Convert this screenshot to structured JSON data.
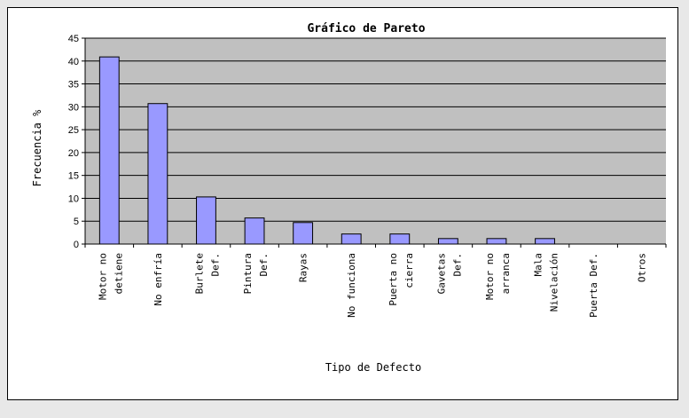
{
  "chart_data": {
    "type": "bar",
    "title": "Gráfico de Pareto",
    "xlabel": "Tipo de Defecto",
    "ylabel": "Frecuencia %",
    "ylim": [
      0,
      45
    ],
    "ytick_step": 5,
    "grid": true,
    "categories": [
      [
        "Motor no",
        "detiene"
      ],
      [
        "No enfría"
      ],
      [
        "Burlete",
        "Def."
      ],
      [
        "Pintura",
        "Def."
      ],
      [
        "Rayas"
      ],
      [
        "No funciona"
      ],
      [
        "Puerta no",
        "cierra"
      ],
      [
        "Gavetas",
        "Def."
      ],
      [
        "Motor no",
        "arranca"
      ],
      [
        "Mala",
        "Nivelación"
      ],
      [
        "Puerta Def."
      ],
      [
        "Otros"
      ]
    ],
    "values": [
      40.9,
      30.7,
      10.3,
      5.7,
      4.7,
      2.2,
      2.2,
      1.2,
      1.2,
      1.2,
      0,
      0
    ],
    "colors": {
      "bar": "#9999ff",
      "plot_bg": "#c0c0c0",
      "grid": "#000000"
    }
  }
}
